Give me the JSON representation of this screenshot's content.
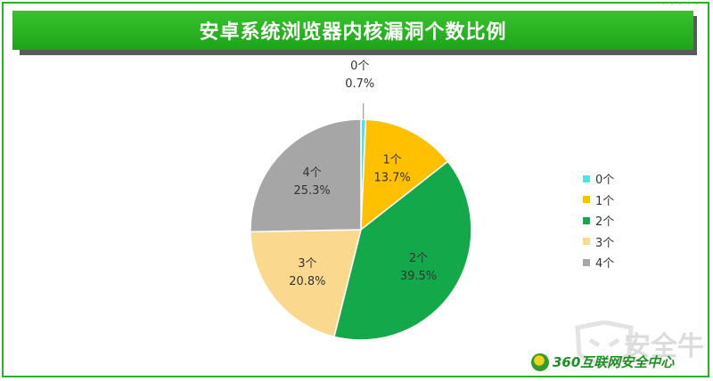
{
  "title": "安卓系统浏览器内核漏洞个数比例",
  "colors": {
    "frame": "#27b324",
    "banner": "#29b322",
    "brand": "#1e8f22"
  },
  "chart_data": {
    "type": "pie",
    "title": "安卓系统浏览器内核漏洞个数比例",
    "legend_position": "right",
    "slices": [
      {
        "label": "0个",
        "value": 0.7,
        "display": "0.7%",
        "color": "#4fe3e8"
      },
      {
        "label": "1个",
        "value": 13.7,
        "display": "13.7%",
        "color": "#ffc000"
      },
      {
        "label": "2个",
        "value": 39.5,
        "display": "39.5%",
        "color": "#13a84a"
      },
      {
        "label": "3个",
        "value": 20.8,
        "display": "20.8%",
        "color": "#fad98e"
      },
      {
        "label": "4个",
        "value": 25.3,
        "display": "25.3%",
        "color": "#a6a6a6"
      }
    ]
  },
  "watermark": {
    "text": "安全牛"
  },
  "brand": {
    "text": "360互联网安全中心"
  }
}
